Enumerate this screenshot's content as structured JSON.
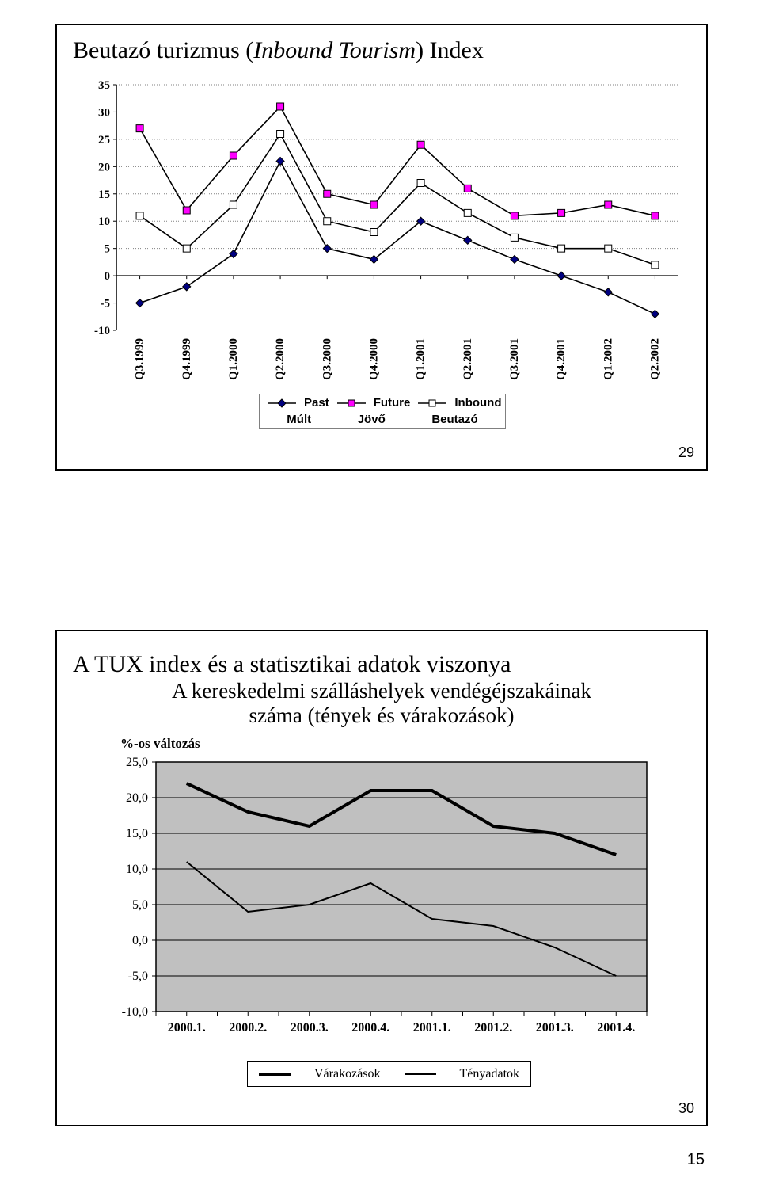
{
  "chart1": {
    "type": "line",
    "title_main": "Beutazó turizmus (",
    "title_italic": "Inbound Tourism",
    "title_end": ") Index",
    "title_fontsize": 30,
    "x_labels": [
      "Q3.1999",
      "Q4.1999",
      "Q1.2000",
      "Q2.2000",
      "Q3.2000",
      "Q4.2000",
      "Q1.2001",
      "Q2.2001",
      "Q3.2001",
      "Q4.2001",
      "Q1.2002",
      "Q2.2002"
    ],
    "ylim": [
      -10,
      35
    ],
    "yticks": [
      -10,
      -5,
      0,
      5,
      10,
      15,
      20,
      25,
      30,
      35
    ],
    "grid_color": "#808080",
    "dash": "1,2",
    "background_color": "#ffffff",
    "series": [
      {
        "name": "Past",
        "hu": "Múlt",
        "marker": "diamond",
        "line_color": "#000000",
        "marker_fill": "#000080",
        "marker_border": "#000000",
        "values": [
          -5,
          -2,
          4,
          21,
          5,
          3,
          10,
          6.5,
          3,
          0,
          -3,
          -7
        ]
      },
      {
        "name": "Future",
        "hu": "Jövő",
        "marker": "square",
        "line_color": "#000000",
        "marker_fill": "#ff00ff",
        "marker_border": "#000000",
        "values": [
          27,
          12,
          22,
          31,
          15,
          13,
          24,
          16,
          11,
          11.5,
          13,
          11
        ]
      },
      {
        "name": "Inbound",
        "hu": "Beutazó",
        "marker": "square-outline",
        "line_color": "#000000",
        "marker_fill": "#ffffff",
        "marker_border": "#000000",
        "values": [
          11,
          5,
          13,
          26,
          10,
          8,
          17,
          11.5,
          7,
          5,
          5,
          2
        ]
      }
    ],
    "legend_labels_en": [
      "Past",
      "Future",
      "Inbound"
    ],
    "legend_labels_hu": [
      "Múlt",
      "Jövő",
      "Beutazó"
    ],
    "axis_fontsize": 15,
    "axis_fontweight": "bold",
    "axis_fontfamily": "Verdana",
    "page_label": "29"
  },
  "chart2": {
    "type": "line",
    "title": "A TUX index és a statisztikai adatok viszonya",
    "subtitle_line1": "A kereskedelmi szálláshelyek vendégéjszakáinak",
    "subtitle_line2": "száma (tények és várakozások)",
    "y_caption": "%-os változás",
    "title_fontsize": 30,
    "subtitle_fontsize": 27,
    "x_labels": [
      "2000.1.",
      "2000.2.",
      "2000.3.",
      "2000.4.",
      "2001.1.",
      "2001.2.",
      "2001.3.",
      "2001.4."
    ],
    "ylim": [
      -10,
      25
    ],
    "yticks_labels": [
      "-10,0",
      "-5,0",
      "0,0",
      "5,0",
      "10,0",
      "15,0",
      "20,0",
      "25,0"
    ],
    "yticks": [
      -10,
      -5,
      0,
      5,
      10,
      15,
      20,
      25
    ],
    "plot_bg": "#c0c0c0",
    "grid_color": "#000000",
    "axis_color": "#000000",
    "axis_fontsize": 16,
    "axis_fontfamily": "Times New Roman",
    "series": [
      {
        "name": "Várakozások",
        "line_width": 4,
        "line_color": "#000000",
        "values": [
          22,
          18,
          16,
          21,
          21,
          16,
          15,
          12
        ]
      },
      {
        "name": "Tényadatok",
        "line_width": 2,
        "line_color": "#000000",
        "values": [
          11,
          4,
          5,
          8,
          3,
          2,
          -1,
          -5
        ]
      }
    ],
    "legend_labels": [
      "Várakozások",
      "Tényadatok"
    ],
    "page_label": "30"
  },
  "page_number": "15"
}
